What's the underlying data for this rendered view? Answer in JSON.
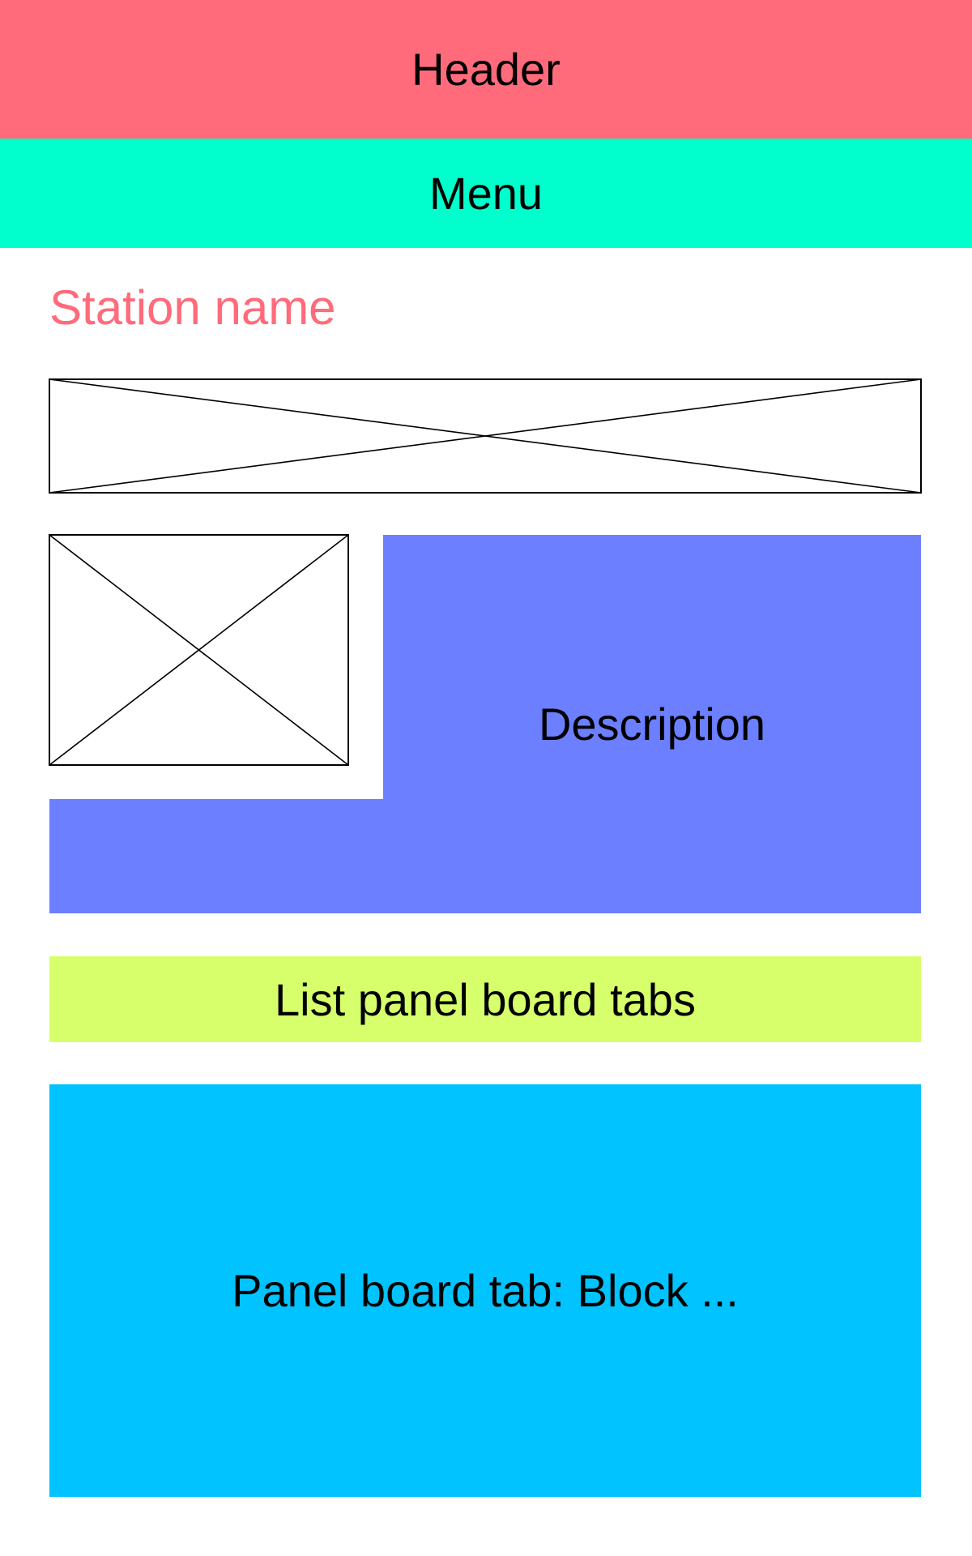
{
  "header": {
    "label": "Header",
    "color": "#ff6b7a"
  },
  "menu": {
    "label": "Menu",
    "color": "#00ffcc"
  },
  "station": {
    "name": "Station name",
    "color": "#ff6b7a"
  },
  "banner": {
    "icon": "image-placeholder-icon"
  },
  "thumbnail": {
    "icon": "image-placeholder-icon"
  },
  "description": {
    "label": "Description",
    "color": "#6b7fff"
  },
  "tabs": {
    "label": "List panel board tabs",
    "color": "#d6ff6b"
  },
  "tab_content": {
    "label": "Panel board tab: Block ...",
    "color": "#00c3ff"
  },
  "placeholder_stroke": "#000000"
}
